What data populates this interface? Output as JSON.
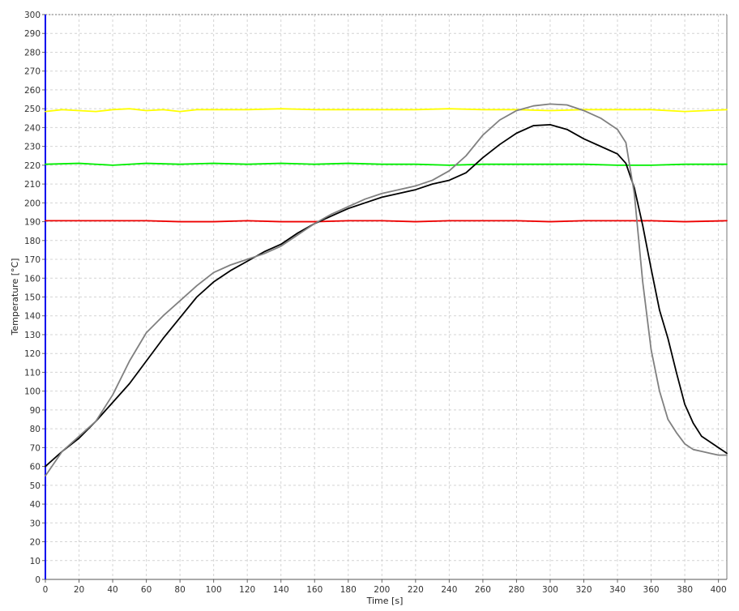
{
  "chart_data": {
    "type": "line",
    "xlabel": "Time [s]",
    "ylabel": "Temperature [°C]",
    "xlim": [
      0,
      405
    ],
    "ylim": [
      0,
      300
    ],
    "x_ticks": [
      0,
      20,
      40,
      60,
      80,
      100,
      120,
      140,
      160,
      180,
      200,
      220,
      240,
      260,
      280,
      300,
      320,
      340,
      360,
      380,
      400
    ],
    "y_ticks": [
      0,
      10,
      20,
      30,
      40,
      50,
      60,
      70,
      80,
      90,
      100,
      110,
      120,
      130,
      140,
      150,
      160,
      170,
      180,
      190,
      200,
      210,
      220,
      230,
      240,
      250,
      260,
      270,
      280,
      290,
      300
    ],
    "grid": true,
    "series": [
      {
        "color": "#ffff00",
        "x": [
          0,
          10,
          20,
          30,
          40,
          50,
          60,
          70,
          80,
          90,
          100,
          120,
          140,
          160,
          180,
          200,
          220,
          240,
          260,
          280,
          300,
          320,
          340,
          360,
          380,
          405
        ],
        "y": [
          248.5,
          249.5,
          249,
          248.5,
          249.5,
          250,
          249,
          249.5,
          248.5,
          249.5,
          249.5,
          249.5,
          250,
          249.5,
          249.5,
          249.5,
          249.5,
          250,
          249.5,
          249.5,
          249,
          249.5,
          249.5,
          249.5,
          248.5,
          249.5
        ]
      },
      {
        "color": "#00ee00",
        "x": [
          0,
          20,
          40,
          60,
          80,
          100,
          120,
          140,
          160,
          180,
          200,
          220,
          240,
          260,
          280,
          300,
          320,
          340,
          360,
          380,
          405
        ],
        "y": [
          220.5,
          221,
          220,
          221,
          220.5,
          221,
          220.5,
          221,
          220.5,
          221,
          220.5,
          220.5,
          220,
          220.5,
          220.5,
          220.5,
          220.5,
          220,
          220,
          220.5,
          220.5
        ]
      },
      {
        "color": "#ee0000",
        "x": [
          0,
          20,
          40,
          60,
          80,
          100,
          120,
          140,
          160,
          180,
          200,
          220,
          240,
          260,
          280,
          300,
          320,
          340,
          360,
          380,
          405
        ],
        "y": [
          190.5,
          190.5,
          190.5,
          190.5,
          190,
          190,
          190.5,
          190,
          190,
          190.5,
          190.5,
          190,
          190.5,
          190.5,
          190.5,
          190,
          190.5,
          190.5,
          190.5,
          190,
          190.5
        ]
      },
      {
        "color": "#000000",
        "x": [
          0,
          10,
          20,
          30,
          40,
          50,
          60,
          70,
          80,
          90,
          100,
          110,
          120,
          130,
          140,
          150,
          160,
          170,
          180,
          190,
          200,
          210,
          220,
          230,
          240,
          250,
          260,
          270,
          280,
          290,
          300,
          310,
          320,
          330,
          340,
          345,
          350,
          355,
          360,
          365,
          370,
          375,
          380,
          385,
          390,
          395,
          400,
          405
        ],
        "y": [
          60,
          68,
          75,
          84,
          94,
          104,
          116,
          128,
          139,
          150,
          158,
          164,
          169,
          174,
          178,
          184,
          189,
          193,
          197,
          200,
          203,
          205,
          207,
          210,
          212,
          216,
          224,
          231,
          237,
          241,
          241.5,
          239,
          234,
          230,
          226,
          221,
          208,
          188,
          165,
          143,
          128,
          110,
          93,
          83,
          76,
          73,
          70,
          67
        ]
      },
      {
        "color": "#808080",
        "x": [
          0,
          10,
          20,
          30,
          40,
          50,
          60,
          70,
          80,
          90,
          100,
          110,
          120,
          130,
          140,
          150,
          160,
          170,
          180,
          190,
          200,
          210,
          220,
          230,
          240,
          250,
          260,
          270,
          280,
          290,
          300,
          310,
          320,
          330,
          340,
          345,
          350,
          355,
          360,
          365,
          370,
          375,
          380,
          385,
          390,
          395,
          400,
          405
        ],
        "y": [
          55,
          68,
          76,
          84,
          98,
          116,
          131,
          140,
          148,
          156,
          163,
          167,
          170,
          173,
          177,
          183,
          189,
          194,
          198,
          202,
          205,
          207,
          209,
          212,
          217,
          225,
          236,
          244,
          249,
          251.5,
          252.5,
          252,
          249,
          245,
          239,
          232,
          205,
          158,
          122,
          100,
          85,
          78,
          72,
          69,
          68,
          67,
          66,
          66
        ]
      }
    ]
  }
}
